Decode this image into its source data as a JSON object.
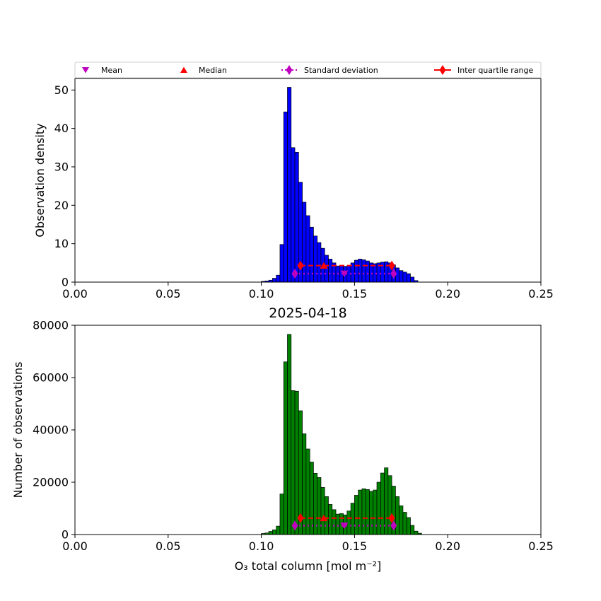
{
  "chart_data": [
    {
      "type": "bar",
      "id": "top",
      "title": "",
      "xlabel": "",
      "ylabel": "Observation density",
      "xlim": [
        0.0,
        0.25
      ],
      "ylim": [
        0,
        53
      ],
      "xticks": [
        "0.00",
        "0.05",
        "0.10",
        "0.15",
        "0.20",
        "0.25"
      ],
      "yticks": [
        "0",
        "10",
        "20",
        "30",
        "40",
        "50"
      ],
      "ytick_values": [
        0,
        10,
        20,
        30,
        40,
        50
      ],
      "bar_color": "#0000ff",
      "bin_start": 0.1,
      "bin_width": 0.002,
      "values": [
        0.2,
        0.3,
        0.5,
        1.0,
        1.8,
        9.8,
        44.3,
        50.7,
        35.0,
        33.8,
        26.0,
        20.8,
        17.3,
        14.3,
        12.0,
        10.3,
        8.8,
        7.0,
        6.0,
        5.0,
        4.2,
        4.3,
        4.1,
        4.3,
        5.0,
        5.7,
        6.0,
        5.8,
        5.5,
        5.0,
        4.8,
        5.0,
        5.2,
        5.3,
        5.0,
        4.5,
        3.7,
        3.0,
        2.6,
        2.2,
        1.3,
        0.4
      ],
      "stats": {
        "mean": {
          "x": 0.1445,
          "y": 2.2
        },
        "median": {
          "x": 0.1335,
          "y": 4.3
        },
        "std": {
          "x": [
            0.118,
            0.171
          ],
          "y": 2.2
        },
        "iqr": {
          "x": [
            0.121,
            0.17
          ],
          "y": 4.3
        }
      },
      "legend": {
        "placement": "top",
        "items": [
          "Mean",
          "Median",
          "Standard deviation",
          "Inter quartile range"
        ]
      }
    },
    {
      "type": "bar",
      "id": "bottom",
      "title": "2025-04-18",
      "xlabel": "O₃ total column [mol m⁻²]",
      "ylabel": "Number of observations",
      "xlim": [
        0.0,
        0.25
      ],
      "ylim": [
        0,
        80000
      ],
      "xticks": [
        "0.00",
        "0.05",
        "0.10",
        "0.15",
        "0.20",
        "0.25"
      ],
      "yticks": [
        "0",
        "20000",
        "40000",
        "60000",
        "80000"
      ],
      "ytick_values": [
        0,
        20000,
        40000,
        60000,
        80000
      ],
      "bar_color": "#008000",
      "bin_start": 0.1,
      "bin_width": 0.002,
      "values": [
        400,
        600,
        1200,
        1800,
        3200,
        15500,
        66000,
        76500,
        55000,
        54800,
        47300,
        38500,
        32700,
        27700,
        23400,
        21800,
        18000,
        14500,
        11500,
        9500,
        7800,
        8000,
        7500,
        9000,
        12000,
        15000,
        17000,
        17500,
        17200,
        16500,
        17000,
        20000,
        23500,
        25500,
        22500,
        18500,
        14500,
        11000,
        8500,
        6500,
        3500,
        1300,
        500
      ],
      "stats": {
        "mean": {
          "x": 0.1445,
          "y": 3400
        },
        "median": {
          "x": 0.1335,
          "y": 6300
        },
        "std": {
          "x": [
            0.118,
            0.171
          ],
          "y": 3400
        },
        "iqr": {
          "x": [
            0.121,
            0.17
          ],
          "y": 6300
        }
      }
    }
  ]
}
